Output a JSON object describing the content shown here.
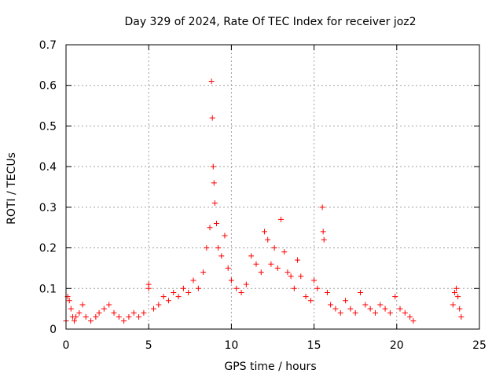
{
  "chart_data": {
    "type": "scatter",
    "title": "Day 329 of 2024, Rate Of TEC Index for receiver joz2",
    "xlabel": "GPS time / hours",
    "ylabel": "ROTI / TECUs",
    "xlim": [
      0,
      25
    ],
    "ylim": [
      0,
      0.7
    ],
    "xticks": [
      0,
      5,
      10,
      15,
      20,
      25
    ],
    "xtick_labels": [
      "0",
      "5",
      "10",
      "15",
      "20",
      "25"
    ],
    "yticks": [
      0,
      0.1,
      0.2,
      0.3,
      0.4,
      0.5,
      0.6,
      0.7
    ],
    "ytick_labels": [
      "0",
      "0.1",
      "0.2",
      "0.3",
      "0.4",
      "0.5",
      "0.6",
      "0.7"
    ],
    "grid": true,
    "marker": "plus",
    "series_color": "#ff0000",
    "series": [
      {
        "name": "ROTI",
        "x": [
          0.0,
          0.1,
          0.2,
          0.3,
          0.4,
          0.5,
          0.6,
          0.8,
          1.0,
          1.2,
          1.5,
          1.8,
          2.0,
          2.3,
          2.6,
          2.9,
          3.2,
          3.5,
          3.8,
          4.1,
          4.4,
          4.7,
          5.0,
          5.0,
          5.3,
          5.6,
          5.9,
          6.2,
          6.5,
          6.8,
          7.1,
          7.4,
          7.7,
          8.0,
          8.3,
          8.5,
          8.7,
          8.8,
          8.85,
          8.9,
          8.95,
          9.0,
          9.1,
          9.2,
          9.4,
          9.6,
          9.8,
          10.0,
          10.3,
          10.6,
          10.9,
          11.2,
          11.5,
          11.8,
          12.0,
          12.2,
          12.4,
          12.6,
          12.8,
          13.0,
          13.2,
          13.4,
          13.6,
          13.8,
          14.0,
          14.2,
          14.5,
          14.8,
          15.0,
          15.2,
          15.5,
          15.55,
          15.6,
          15.8,
          16.0,
          16.3,
          16.6,
          16.9,
          17.2,
          17.5,
          17.8,
          18.1,
          18.4,
          18.7,
          19.0,
          19.3,
          19.6,
          19.9,
          20.2,
          20.5,
          20.8,
          21.0,
          23.4,
          23.5,
          23.6,
          23.7,
          23.8,
          23.9
        ],
        "y": [
          0.02,
          0.08,
          0.07,
          0.05,
          0.03,
          0.02,
          0.03,
          0.04,
          0.06,
          0.03,
          0.02,
          0.03,
          0.04,
          0.05,
          0.06,
          0.04,
          0.03,
          0.02,
          0.03,
          0.04,
          0.03,
          0.04,
          0.11,
          0.1,
          0.05,
          0.06,
          0.08,
          0.07,
          0.09,
          0.08,
          0.1,
          0.09,
          0.12,
          0.1,
          0.14,
          0.2,
          0.25,
          0.61,
          0.52,
          0.4,
          0.36,
          0.31,
          0.26,
          0.2,
          0.18,
          0.23,
          0.15,
          0.12,
          0.1,
          0.09,
          0.11,
          0.18,
          0.16,
          0.14,
          0.24,
          0.22,
          0.16,
          0.2,
          0.15,
          0.27,
          0.19,
          0.14,
          0.13,
          0.1,
          0.17,
          0.13,
          0.08,
          0.07,
          0.12,
          0.1,
          0.3,
          0.24,
          0.22,
          0.09,
          0.06,
          0.05,
          0.04,
          0.07,
          0.05,
          0.04,
          0.09,
          0.06,
          0.05,
          0.04,
          0.06,
          0.05,
          0.04,
          0.08,
          0.05,
          0.04,
          0.03,
          0.02,
          0.06,
          0.09,
          0.1,
          0.08,
          0.05,
          0.03
        ]
      }
    ]
  }
}
